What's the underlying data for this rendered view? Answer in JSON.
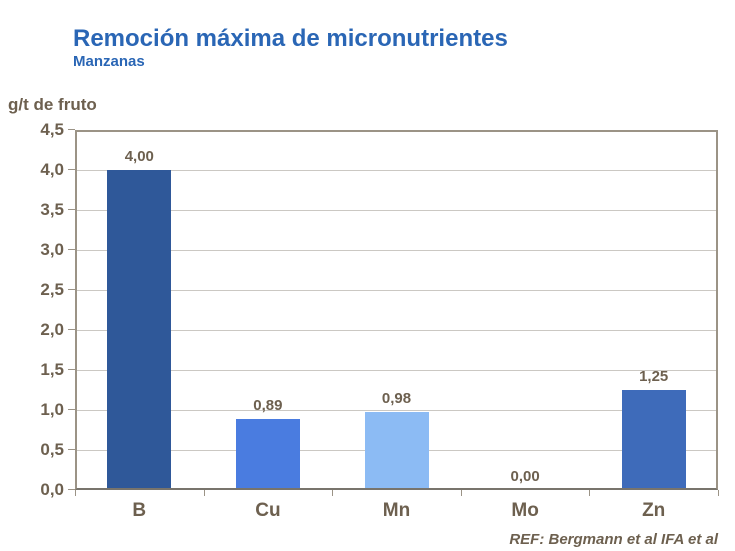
{
  "header": {
    "title": "Remoción máxima de micronutrientes",
    "subtitle": "Manzanas"
  },
  "chart": {
    "unit_label": "g/t de fruto"
  },
  "footer": {
    "reference": "REF: Bergmann et al IFA et al"
  },
  "colors": {
    "title_blue": "#2a66b5",
    "label_brown": "#6d604f",
    "gridline": "#cbc8c3",
    "plot_border": "#9b9386",
    "axis_line": "#78746c"
  },
  "chart_data": {
    "type": "bar",
    "title": "Remoción máxima de micronutrientes",
    "subtitle": "Manzanas",
    "ylabel": "g/t de fruto",
    "xlabel": "",
    "categories": [
      "B",
      "Cu",
      "Mn",
      "Mo",
      "Zn"
    ],
    "values": [
      4.0,
      0.89,
      0.98,
      0.0,
      1.25
    ],
    "value_labels": [
      "4,00",
      "0,89",
      "0,98",
      "0,00",
      "1,25"
    ],
    "bar_colors": [
      "#2f5899",
      "#4a7ce0",
      "#8cbbf4",
      "#4a7ce0",
      "#3e6bba"
    ],
    "ylim": [
      0,
      4.5
    ],
    "ytick_step": 0.5,
    "ytick_labels": [
      "0,0",
      "0,5",
      "1,0",
      "1,5",
      "2,0",
      "2,5",
      "3,0",
      "3,5",
      "4,0",
      "4,5"
    ],
    "grid": true,
    "legend": false,
    "annotation": "REF: Bergmann et al IFA et al"
  }
}
